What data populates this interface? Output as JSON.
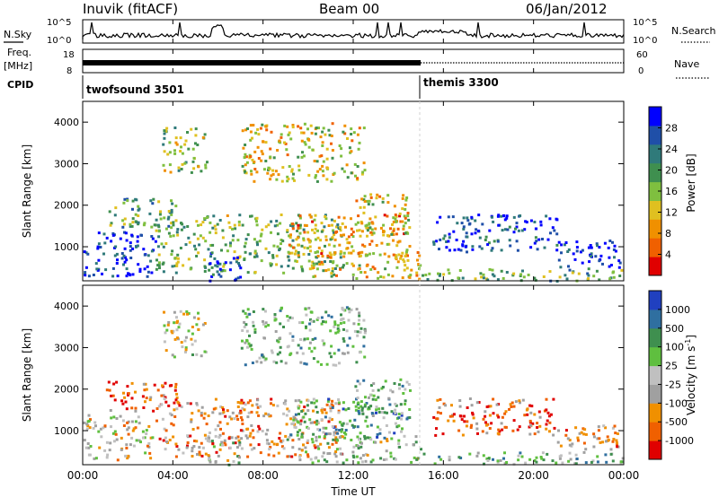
{
  "header": {
    "station": "Inuvik (fitACF)",
    "beam": "Beam 00",
    "date": "06/Jan/2012"
  },
  "top_panels": {
    "nsky_label": "N.Sky",
    "nsky_ticks": [
      "10^5",
      "10^0"
    ],
    "nsearch_label": "N.Search",
    "nsearch_ticks": [
      "10^5",
      "10^0"
    ],
    "freq_label": "Freq.",
    "freq_unit": "[MHz]",
    "freq_ticks": [
      "18",
      "8"
    ],
    "nave_label": "Nave",
    "nave_ticks": [
      "60",
      "0"
    ],
    "cpid_label": "CPID",
    "cpid_modes": [
      {
        "name": "twofsound 3501",
        "start_hour": 0
      },
      {
        "name": "themis 3300",
        "start_hour": 15
      }
    ]
  },
  "time_axis": {
    "label": "Time UT",
    "ticks": [
      "00:00",
      "04:00",
      "08:00",
      "12:00",
      "16:00",
      "20:00",
      "00:00"
    ]
  },
  "colors": {
    "power": [
      "#0000ff",
      "#1f4fa8",
      "#2f7a7a",
      "#3f8f4f",
      "#7fbf3f",
      "#e0c020",
      "#f09000",
      "#f06000",
      "#e00000"
    ],
    "velocity": [
      "#e00000",
      "#f06000",
      "#f09000",
      "#a0a0a0",
      "#c0c0c0",
      "#5fbf3f",
      "#3f8f4f",
      "#2f6fa0",
      "#2040c0"
    ]
  },
  "chart_data": [
    {
      "type": "heatmap",
      "title": "",
      "xlabel": "",
      "ylabel": "Slant Range [km]",
      "x_range_hours": [
        0,
        24
      ],
      "ylim": [
        180,
        4500
      ],
      "yticks": [
        "1000",
        "2000",
        "3000",
        "4000"
      ],
      "colorbar": {
        "label": "Power [dB]",
        "ticks": [
          "4",
          "8",
          "12",
          "16",
          "20",
          "24",
          "28"
        ],
        "range": [
          0,
          30
        ]
      },
      "regions": [
        {
          "t0": 0.0,
          "t1": 3.2,
          "r0": 300,
          "r1": 1400,
          "level": 0.9
        },
        {
          "t0": 1.0,
          "t1": 4.2,
          "r0": 1500,
          "r1": 2200,
          "level": 0.6
        },
        {
          "t0": 3.5,
          "t1": 5.5,
          "r0": 2800,
          "r1": 3900,
          "level": 0.5
        },
        {
          "t0": 3.2,
          "t1": 11.5,
          "r0": 400,
          "r1": 1800,
          "level": 0.55
        },
        {
          "t0": 5.5,
          "t1": 7.0,
          "r0": 200,
          "r1": 900,
          "level": 0.85
        },
        {
          "t0": 9.5,
          "t1": 15.0,
          "r0": 250,
          "r1": 900,
          "level": 0.35
        },
        {
          "t0": 9.0,
          "t1": 14.5,
          "r0": 800,
          "r1": 1800,
          "level": 0.3
        },
        {
          "t0": 12.0,
          "t1": 14.5,
          "r0": 1300,
          "r1": 2300,
          "level": 0.4
        },
        {
          "t0": 15.5,
          "t1": 21.0,
          "r0": 900,
          "r1": 1800,
          "level": 0.85
        },
        {
          "t0": 21.0,
          "t1": 23.8,
          "r0": 500,
          "r1": 1200,
          "level": 0.9
        },
        {
          "t0": 7.0,
          "t1": 12.5,
          "r0": 2600,
          "r1": 4000,
          "level": 0.4
        },
        {
          "t0": 15.0,
          "t1": 24.0,
          "r0": 200,
          "r1": 500,
          "level": 0.6
        }
      ]
    },
    {
      "type": "heatmap",
      "title": "",
      "xlabel": "Time UT",
      "ylabel": "Slant Range [km]",
      "x_range_hours": [
        0,
        24
      ],
      "ylim": [
        180,
        4500
      ],
      "yticks": [
        "1000",
        "2000",
        "3000",
        "4000"
      ],
      "colorbar": {
        "label": "Velocity [m s^-1]",
        "ticks": [
          "1000",
          "500",
          "100",
          "25",
          "-25",
          "-100",
          "-500",
          "-1000"
        ],
        "range": [
          -1000,
          1000
        ]
      },
      "regions": [
        {
          "t0": 0.0,
          "t1": 3.2,
          "r0": 300,
          "r1": 1400,
          "level": 0.4
        },
        {
          "t0": 1.0,
          "t1": 4.2,
          "r0": 1500,
          "r1": 2200,
          "level": 0.15
        },
        {
          "t0": 3.5,
          "t1": 5.5,
          "r0": 2800,
          "r1": 3900,
          "level": 0.45
        },
        {
          "t0": 3.2,
          "t1": 11.5,
          "r0": 400,
          "r1": 1800,
          "level": 0.3
        },
        {
          "t0": 5.5,
          "t1": 7.0,
          "r0": 200,
          "r1": 900,
          "level": 0.55
        },
        {
          "t0": 9.5,
          "t1": 15.0,
          "r0": 250,
          "r1": 900,
          "level": 0.5
        },
        {
          "t0": 9.0,
          "t1": 14.5,
          "r0": 800,
          "r1": 1800,
          "level": 0.7
        },
        {
          "t0": 12.0,
          "t1": 14.5,
          "r0": 1300,
          "r1": 2300,
          "level": 0.65
        },
        {
          "t0": 15.5,
          "t1": 21.0,
          "r0": 900,
          "r1": 1800,
          "level": 0.2
        },
        {
          "t0": 21.0,
          "t1": 23.8,
          "r0": 500,
          "r1": 1200,
          "level": 0.3
        },
        {
          "t0": 7.0,
          "t1": 12.5,
          "r0": 2600,
          "r1": 4000,
          "level": 0.6
        },
        {
          "t0": 15.0,
          "t1": 24.0,
          "r0": 200,
          "r1": 500,
          "level": 0.6
        }
      ]
    }
  ]
}
